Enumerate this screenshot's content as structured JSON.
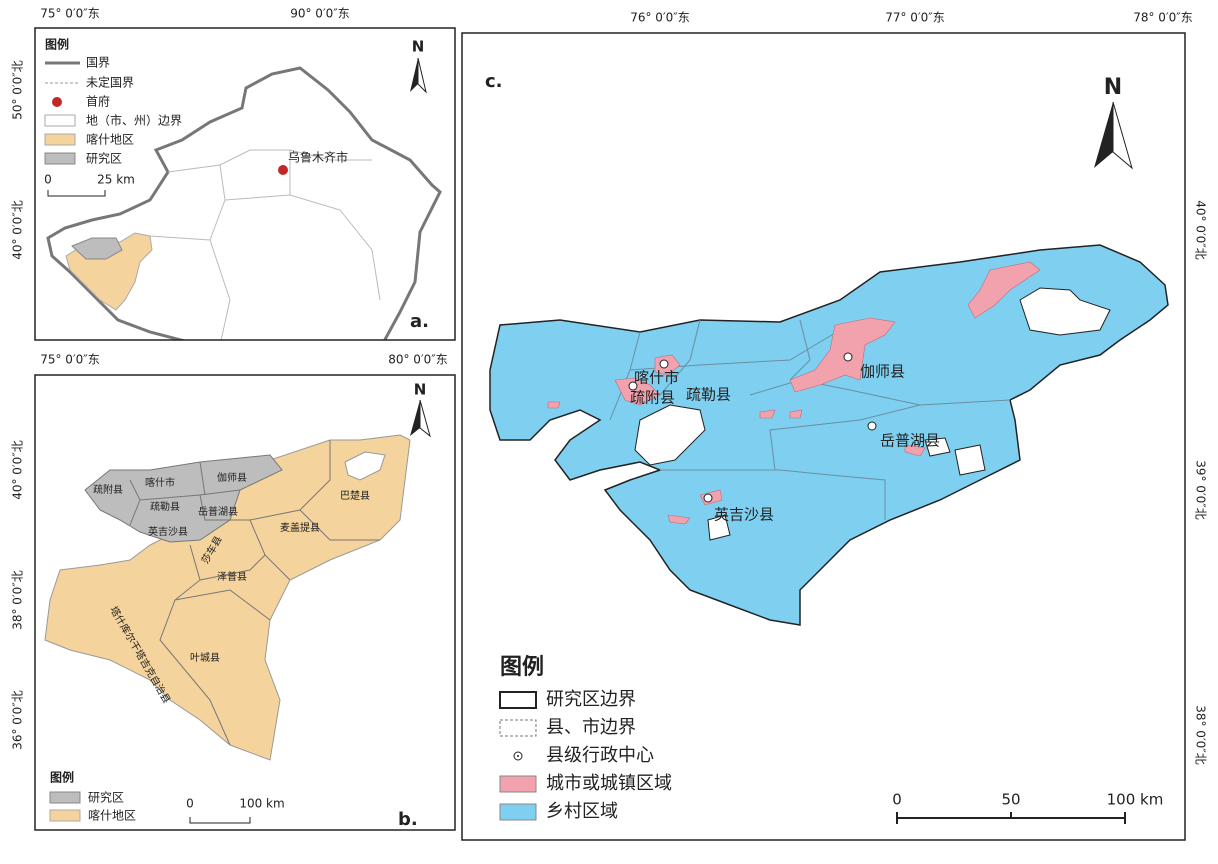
{
  "panel_a": {
    "label": "a.",
    "north": "N",
    "lon_labels": [
      "75° 0′0″东",
      "90° 0′0″东"
    ],
    "lat_labels": [
      "50° 0′0″北",
      "40° 0′0″北"
    ],
    "city": "乌鲁木齐市",
    "legend": {
      "title": "图例",
      "items": [
        "国界",
        "未定国界",
        "首府",
        "地（市、州）边界",
        "喀什地区",
        "研究区"
      ]
    },
    "scale": [
      "0",
      "25 km"
    ]
  },
  "panel_b": {
    "label": "b.",
    "north": "N",
    "lon_labels": [
      "75° 0′0″东",
      "80° 0′0″东"
    ],
    "lat_labels": [
      "40° 0′0″北",
      "38° 0′0″北",
      "36° 0′0″北"
    ],
    "counties": [
      "疏附县",
      "喀什市",
      "疏勒县",
      "伽师县",
      "岳普湖县",
      "英吉沙县",
      "巴楚县",
      "麦盖提县",
      "莎车县",
      "泽普县",
      "塔什库尔干塔吉克自治县",
      "叶城县"
    ],
    "legend": {
      "title": "图例",
      "items": [
        "研究区",
        "喀什地区"
      ]
    },
    "scale": [
      "0",
      "100 km"
    ]
  },
  "panel_c": {
    "label": "c.",
    "north": "N",
    "lon_labels": [
      "76° 0′0″东",
      "77° 0′0″东",
      "78° 0′0″东"
    ],
    "lat_labels": [
      "40° 0′0″北",
      "39° 0′0″北",
      "38° 0′0″北"
    ],
    "counties": [
      "喀什市",
      "疏附县",
      "疏勒县",
      "伽师县",
      "岳普湖县",
      "英吉沙县"
    ],
    "legend": {
      "title": "图例",
      "items": [
        "研究区边界",
        "县、市边界",
        "县级行政中心",
        "城市或城镇区域",
        "乡村区域"
      ]
    },
    "scale": [
      "0",
      "50",
      "100 km"
    ]
  }
}
